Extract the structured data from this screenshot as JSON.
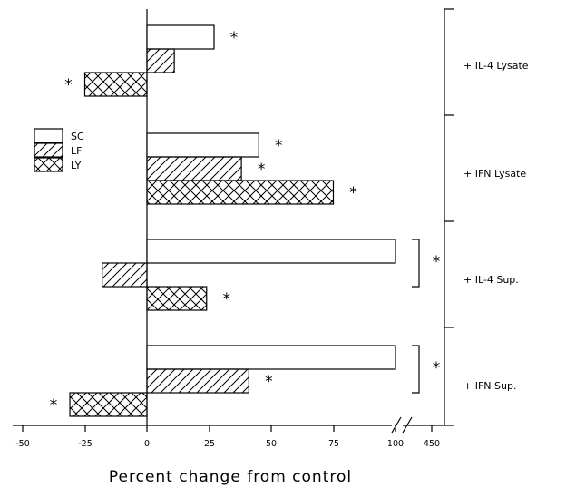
{
  "chart_data": {
    "type": "bar",
    "orientation": "horizontal",
    "xlabel": "Percent change from control",
    "ticks": [
      "-50",
      "-25",
      "0",
      "25",
      "50",
      "75",
      "100",
      "450"
    ],
    "axis_break": "between 100 and 450",
    "xlim": [
      -50,
      110
    ],
    "grid": false,
    "legend_placement": "left, upper-middle",
    "categories": [
      "+ IL-4 Lysate",
      "+ IFN Lysate",
      "+ IL-4 Sup.",
      "+ IFN Sup."
    ],
    "series": [
      {
        "name": "SC",
        "pattern": "open",
        "values": [
          27,
          45,
          450,
          450
        ],
        "significant": [
          true,
          true,
          true,
          true
        ]
      },
      {
        "name": "LF",
        "pattern": "diagonal",
        "values": [
          11,
          38,
          -18,
          41
        ],
        "significant": [
          false,
          true,
          false,
          true
        ]
      },
      {
        "name": "LY",
        "pattern": "crosshatch",
        "values": [
          -25,
          75,
          24,
          -31
        ],
        "significant": [
          true,
          true,
          true,
          true
        ]
      }
    ],
    "significance_marker": "*"
  },
  "colors": {
    "ink": "#000000",
    "background": "#ffffff"
  }
}
